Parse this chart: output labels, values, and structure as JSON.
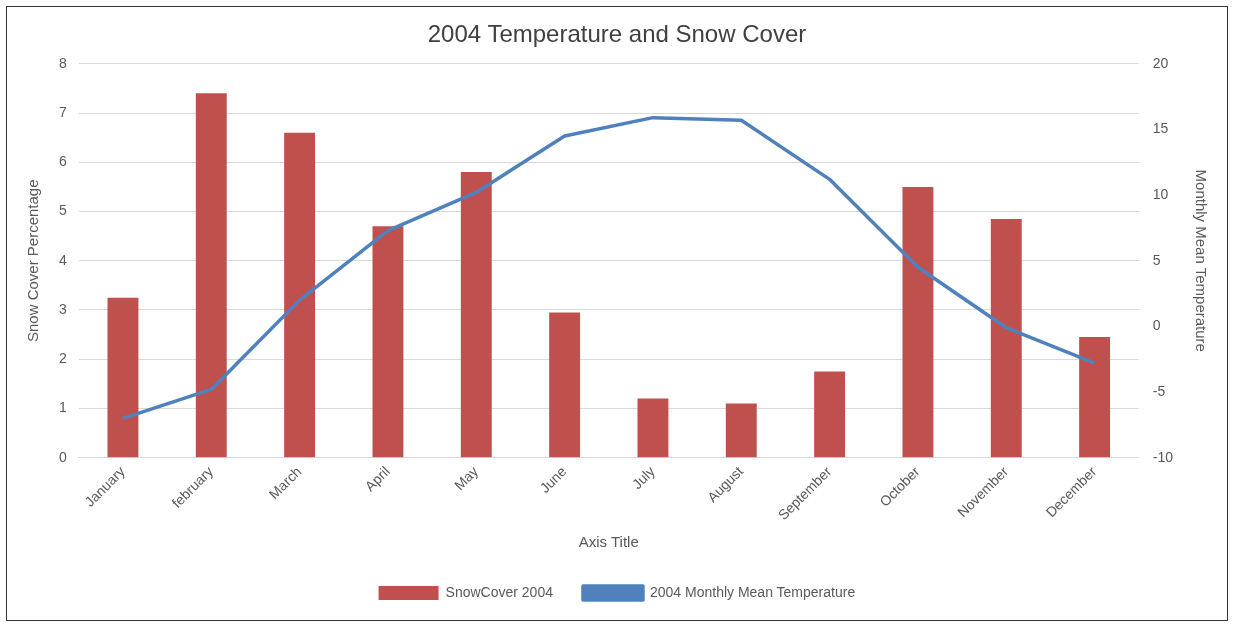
{
  "chart_data": {
    "type": "bar",
    "title": "2004 Temperature and Snow Cover",
    "xlabel": "Axis Title",
    "ylabel": "Snow Cover Percentage",
    "y2label": "Monthly Mean Temperature",
    "categories": [
      "January",
      "february",
      "March",
      "April",
      "May",
      "June",
      "July",
      "August",
      "September",
      "October",
      "November",
      "December"
    ],
    "series": [
      {
        "name": "SnowCover 2004",
        "color": "#c0504d",
        "values": [
          3.25,
          7.4,
          6.6,
          4.7,
          5.8,
          2.95,
          1.2,
          1.1,
          1.75,
          5.5,
          4.85,
          2.45
        ]
      },
      {
        "name": "2004 Monthly Mean Temperature",
        "type": "line",
        "axis": "y2",
        "color": "#4f81bd",
        "values": [
          -7,
          -4.8,
          2,
          7.3,
          10.2,
          14.5,
          15.9,
          15.7,
          11.2,
          4.5,
          -0.1,
          -2.8
        ]
      }
    ],
    "ylim": [
      0,
      8
    ],
    "yticks": [
      0,
      1,
      2,
      3,
      4,
      5,
      6,
      7,
      8
    ],
    "y2lim": [
      -10,
      20
    ],
    "y2ticks": [
      -10,
      -5,
      0,
      5,
      10,
      15,
      20
    ],
    "grid": "y",
    "legend": "bottom",
    "marker": "none"
  }
}
